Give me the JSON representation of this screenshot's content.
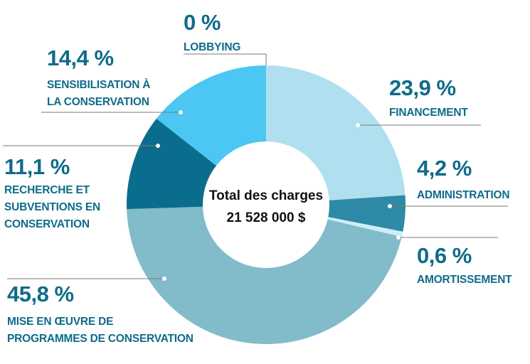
{
  "chart_data": {
    "type": "pie",
    "variant": "donut",
    "title": "",
    "center": {
      "line1": "Total des charges",
      "line2": "21 528 000 $"
    },
    "slices": [
      {
        "pct_label": "23,9 %",
        "value": 23.9,
        "label_lines": [
          "FINANCEMENT"
        ],
        "color": "#b0e0f0"
      },
      {
        "pct_label": "4,2 %",
        "value": 4.2,
        "label_lines": [
          "ADMINISTRATION"
        ],
        "color": "#2e8aa6"
      },
      {
        "pct_label": "0,6 %",
        "value": 0.6,
        "label_lines": [
          "AMORTISSEMENT"
        ],
        "color": "#cdeef8"
      },
      {
        "pct_label": "45,8 %",
        "value": 45.8,
        "label_lines": [
          "MISE EN ŒUVRE DE",
          "PROGRAMMES DE CONSERVATION"
        ],
        "color": "#82bccb"
      },
      {
        "pct_label": "11,1 %",
        "value": 11.1,
        "label_lines": [
          "RECHERCHE ET",
          "SUBVENTIONS EN",
          "CONSERVATION"
        ],
        "color": "#0a6d8d"
      },
      {
        "pct_label": "14,4 %",
        "value": 14.4,
        "label_lines": [
          "SENSIBILISATION À",
          "LA CONSERVATION"
        ],
        "color": "#4cc6f2"
      },
      {
        "pct_label": "0 %",
        "value": 0,
        "label_lines": [
          "LOBBYING"
        ],
        "color": "#4cc6f2"
      }
    ],
    "legend": "none"
  }
}
